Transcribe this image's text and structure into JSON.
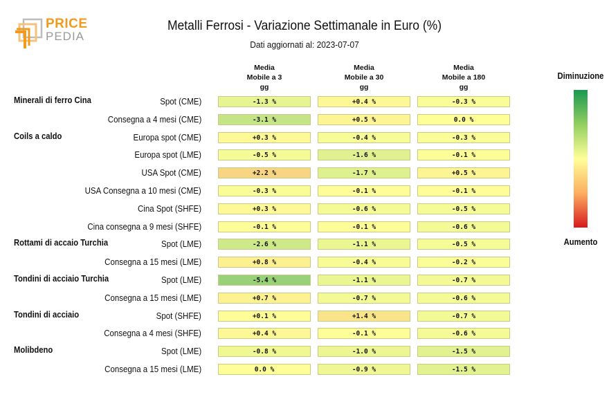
{
  "logo": {
    "line1": "PRICE",
    "line2": "PEDIA"
  },
  "title": "Metalli Ferrosi - Variazione Settimanale in Euro (%)",
  "subtitle": "Dati aggiornati al: 2023-07-07",
  "legend": {
    "top": "Diminuzione",
    "bottom": "Aumento"
  },
  "chart_data": {
    "type": "heatmap",
    "columns": [
      "Media Mobile a 3 gg",
      "Media Mobile a 30 gg",
      "Media Mobile a 180 gg"
    ],
    "columns_lines": [
      [
        "Media",
        "Mobile a 3",
        "gg"
      ],
      [
        "Media",
        "Mobile a 30",
        "gg"
      ],
      [
        "Media",
        "Mobile a 180",
        "gg"
      ]
    ],
    "rows": [
      {
        "group": "Minerali di ferro Cina",
        "label": "Spot (CME)",
        "values": [
          -1.3,
          0.4,
          -0.3
        ],
        "text": [
          "-1.3 %",
          "+0.4 %",
          "-0.3 %"
        ]
      },
      {
        "group": "",
        "label": "Consegna a 4 mesi (CME)",
        "values": [
          -3.1,
          0.5,
          0.0
        ],
        "text": [
          "-3.1 %",
          "+0.5 %",
          "0.0 %"
        ]
      },
      {
        "group": "Coils a caldo",
        "label": "Europa spot (CME)",
        "values": [
          0.3,
          -0.4,
          -0.3
        ],
        "text": [
          "+0.3 %",
          "-0.4 %",
          "-0.3 %"
        ]
      },
      {
        "group": "",
        "label": "Europa spot (LME)",
        "values": [
          -0.5,
          -1.6,
          -0.1
        ],
        "text": [
          "-0.5 %",
          "-1.6 %",
          "-0.1 %"
        ]
      },
      {
        "group": "",
        "label": "USA Spot (CME)",
        "values": [
          2.2,
          -1.7,
          0.5
        ],
        "text": [
          "+2.2 %",
          "-1.7 %",
          "+0.5 %"
        ]
      },
      {
        "group": "",
        "label": "USA Consegna a 10 mesi (CME)",
        "values": [
          -0.3,
          -0.1,
          -0.1
        ],
        "text": [
          "-0.3 %",
          "-0.1 %",
          "-0.1 %"
        ]
      },
      {
        "group": "",
        "label": "Cina Spot (SHFE)",
        "values": [
          0.3,
          -0.6,
          -0.5
        ],
        "text": [
          "+0.3 %",
          "-0.6 %",
          "-0.5 %"
        ]
      },
      {
        "group": "",
        "label": "Cina consegna a 9 mesi (SHFE)",
        "values": [
          -0.1,
          -0.1,
          -0.6
        ],
        "text": [
          "-0.1 %",
          "-0.1 %",
          "-0.6 %"
        ]
      },
      {
        "group": "Rottami di accaio Turchia",
        "label": "Spot (LME)",
        "values": [
          -2.6,
          -1.1,
          -0.5
        ],
        "text": [
          "-2.6 %",
          "-1.1 %",
          "-0.5 %"
        ]
      },
      {
        "group": "",
        "label": "Consegna a 15 mesi (LME)",
        "values": [
          0.8,
          -0.4,
          -0.2
        ],
        "text": [
          "+0.8 %",
          "-0.4 %",
          "-0.2 %"
        ]
      },
      {
        "group": "Tondini di acciaio Turchia",
        "label": "Spot (LME)",
        "values": [
          -5.4,
          -1.1,
          -0.7
        ],
        "text": [
          "-5.4 %",
          "-1.1 %",
          "-0.7 %"
        ]
      },
      {
        "group": "",
        "label": "Consegna a 15 mesi (LME)",
        "values": [
          0.7,
          -0.7,
          -0.6
        ],
        "text": [
          "+0.7 %",
          "-0.7 %",
          "-0.6 %"
        ]
      },
      {
        "group": "Tondini di acciaio",
        "label": "Spot (SHFE)",
        "values": [
          0.1,
          1.4,
          -0.7
        ],
        "text": [
          "+0.1 %",
          "+1.4 %",
          "-0.7 %"
        ]
      },
      {
        "group": "",
        "label": "Consegna a 4 mesi (SHFE)",
        "values": [
          0.4,
          -0.1,
          -0.6
        ],
        "text": [
          "+0.4 %",
          "-0.1 %",
          "-0.6 %"
        ]
      },
      {
        "group": "Molibdeno",
        "label": "Spot (LME)",
        "values": [
          -0.8,
          -1.0,
          -1.5
        ],
        "text": [
          "-0.8 %",
          "-1.0 %",
          "-1.5 %"
        ]
      },
      {
        "group": "",
        "label": "Consegna a 15 mesi (LME)",
        "values": [
          0.0,
          -0.9,
          -1.5
        ],
        "text": [
          "0.0 %",
          "-0.9 %",
          "-1.5 %"
        ]
      }
    ],
    "color_scale": {
      "low": "#1a9850",
      "mid": "#ffff99",
      "high": "#d7191c",
      "low_label": "Diminuzione",
      "high_label": "Aumento"
    }
  }
}
